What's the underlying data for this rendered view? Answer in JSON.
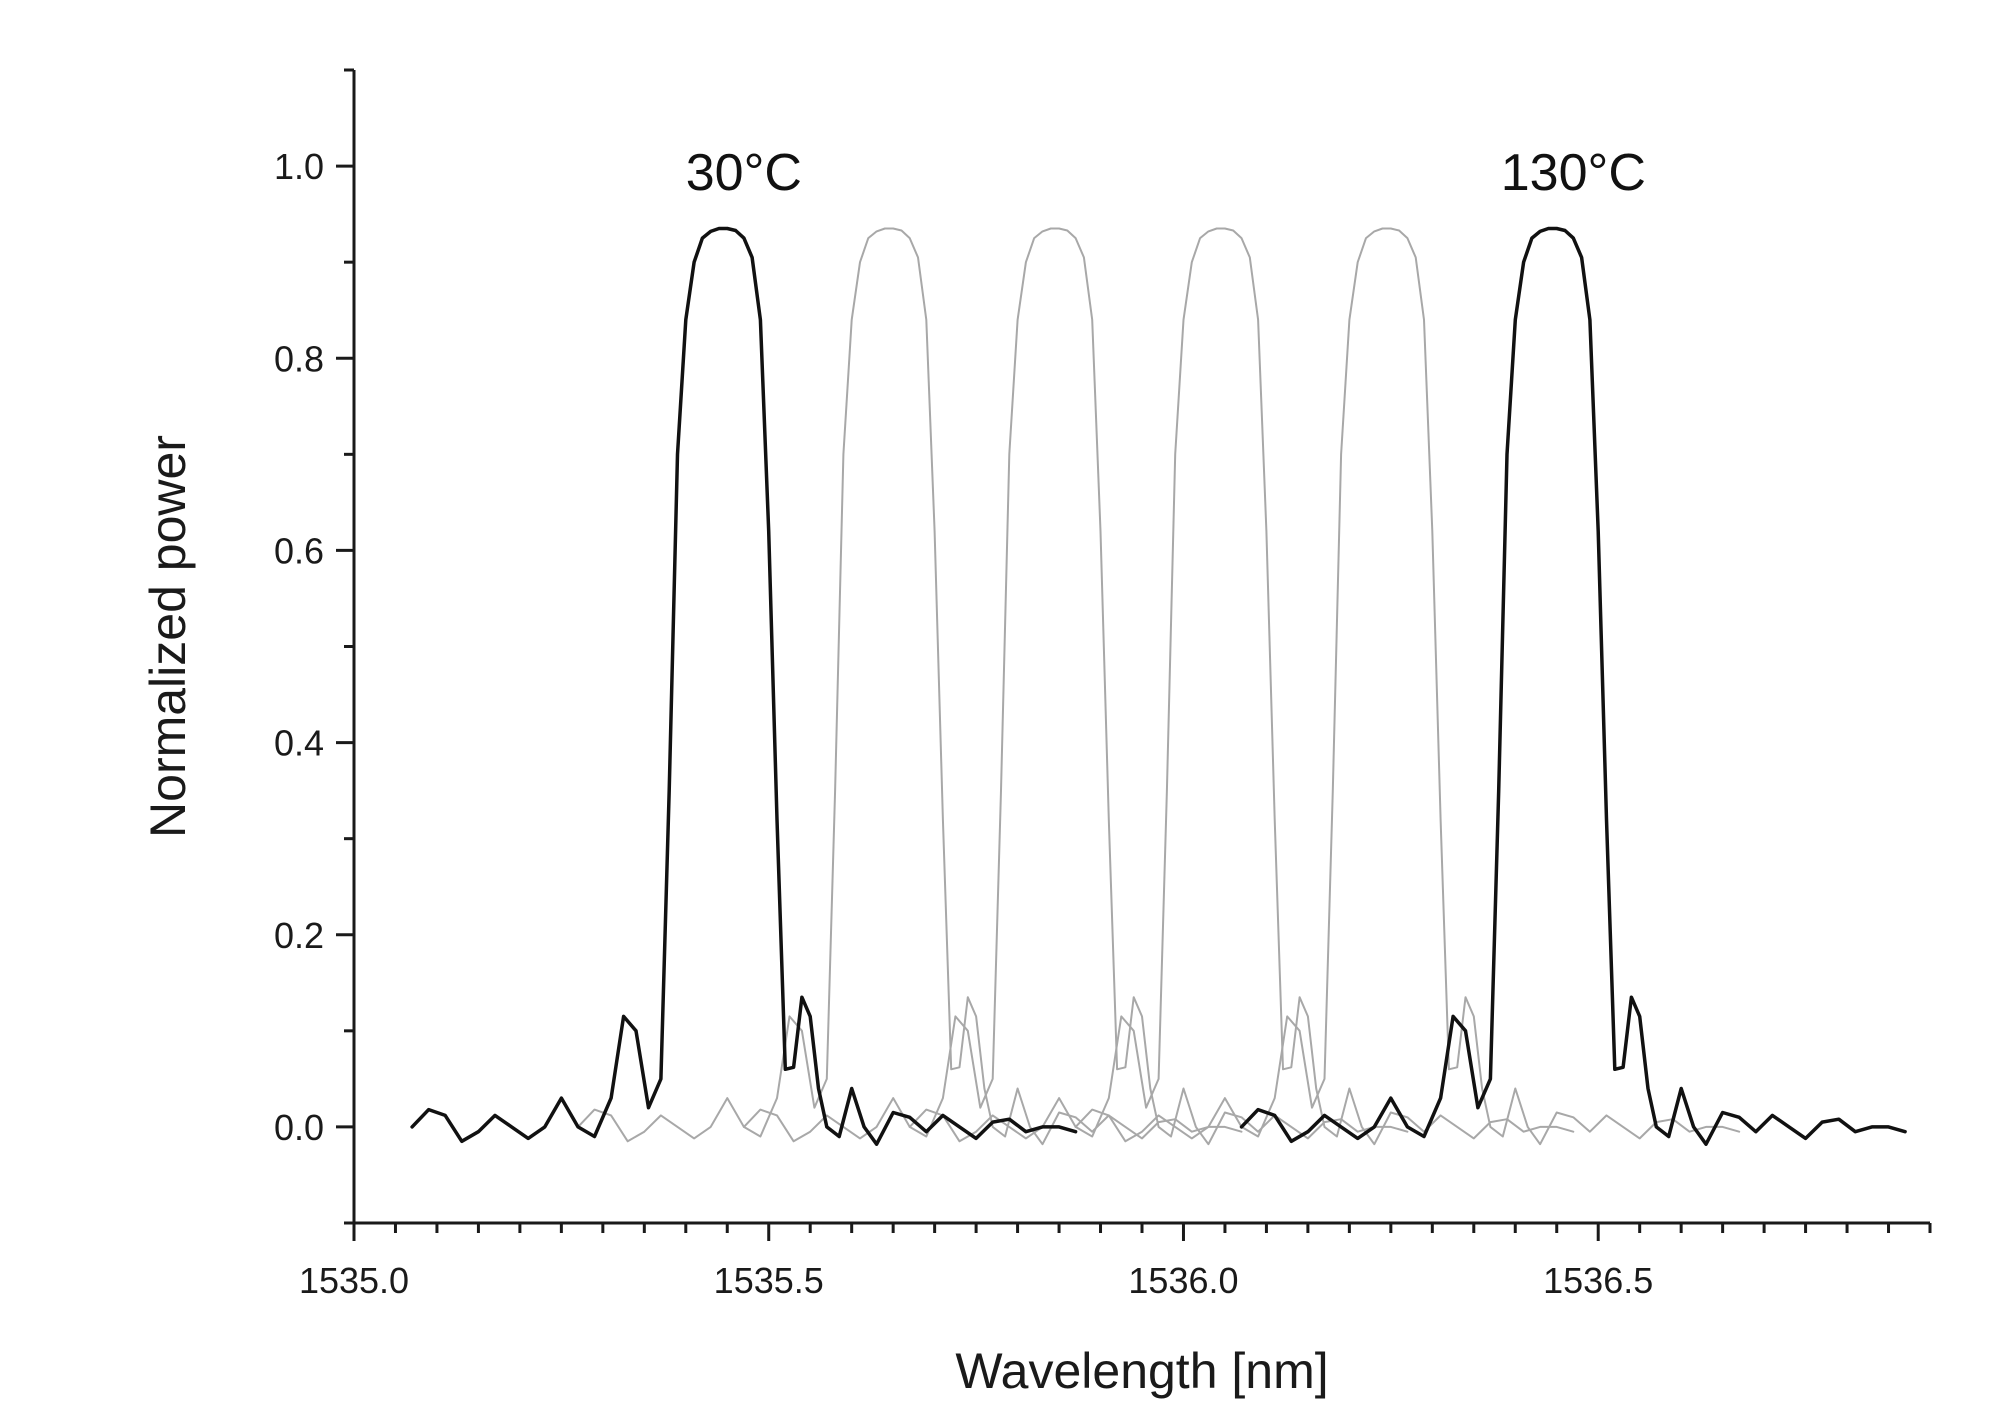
{
  "chart_data": {
    "type": "line",
    "title": "",
    "xlabel": "Wavelength [nm]",
    "ylabel": "Normalized power",
    "xlim": [
      1535.0,
      1536.9
    ],
    "ylim": [
      -0.1,
      1.1
    ],
    "x_ticks": [
      1535.0,
      1535.5,
      1536.0,
      1536.5
    ],
    "x_tick_labels": [
      "1535.0",
      "1535.5",
      "1536.0",
      "1536.5"
    ],
    "y_ticks": [
      0.0,
      0.2,
      0.4,
      0.6,
      0.8,
      1.0
    ],
    "y_tick_labels": [
      "0.0",
      "0.2",
      "0.4",
      "0.6",
      "0.8",
      "1.0"
    ],
    "grid": false,
    "legend": "none",
    "colors": {
      "highlight": "#111111",
      "intermediate": "#a8a8a8"
    },
    "annotations": [
      {
        "text": "30°C",
        "x": 1535.47,
        "y": 0.975
      },
      {
        "text": "130°C",
        "x": 1536.47,
        "y": 0.975
      }
    ],
    "series": [
      {
        "center": 1535.47,
        "peak": 0.935,
        "style": "highlight"
      },
      {
        "center": 1535.67,
        "peak": 0.935,
        "style": "intermediate"
      },
      {
        "center": 1535.87,
        "peak": 0.935,
        "style": "intermediate"
      },
      {
        "center": 1536.07,
        "peak": 0.935,
        "style": "intermediate"
      },
      {
        "center": 1536.27,
        "peak": 0.935,
        "style": "intermediate"
      },
      {
        "center": 1536.47,
        "peak": 0.935,
        "style": "highlight"
      }
    ],
    "spectrum_shape": {
      "dx": [
        -0.4,
        -0.38,
        -0.36,
        -0.34,
        -0.32,
        -0.3,
        -0.28,
        -0.26,
        -0.24,
        -0.22,
        -0.2,
        -0.18,
        -0.16,
        -0.145,
        -0.13,
        -0.115,
        -0.1,
        -0.09,
        -0.08,
        -0.07,
        -0.06,
        -0.05,
        -0.04,
        -0.03,
        -0.02,
        -0.01,
        0.0,
        0.01,
        0.02,
        0.03,
        0.04,
        0.05,
        0.06,
        0.07,
        0.08,
        0.09,
        0.1,
        0.115,
        0.13,
        0.145,
        0.16,
        0.18,
        0.2,
        0.22,
        0.24,
        0.26,
        0.28,
        0.3,
        0.32,
        0.34,
        0.36,
        0.38,
        0.4
      ],
      "y": [
        0.0,
        0.018,
        0.012,
        -0.015,
        -0.005,
        0.012,
        0.0,
        -0.012,
        0.0,
        0.03,
        0.0,
        -0.01,
        0.03,
        0.115,
        0.1,
        0.02,
        0.05,
        0.35,
        0.7,
        0.84,
        0.9,
        0.925,
        0.932,
        0.935,
        0.935,
        0.933,
        0.925,
        0.905,
        0.84,
        0.62,
        0.32,
        0.06,
        0.062,
        0.135,
        0.115,
        0.04,
        0.0,
        -0.01,
        0.04,
        0.0,
        -0.018,
        0.015,
        0.01,
        -0.005,
        0.012,
        0.0,
        -0.012,
        0.005,
        0.008,
        -0.005,
        0.0,
        0.0,
        -0.005
      ]
    }
  }
}
